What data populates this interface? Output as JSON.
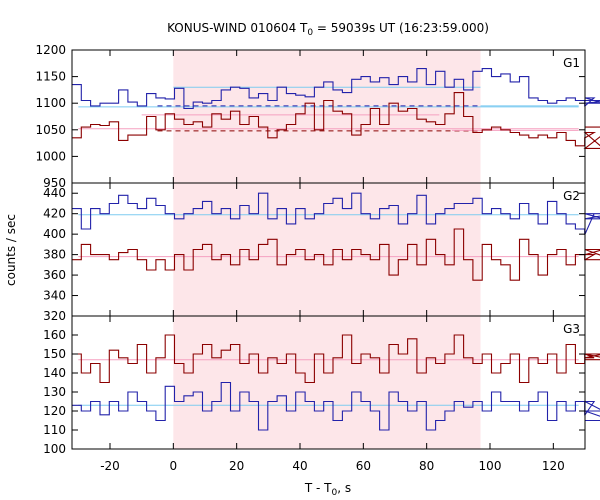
{
  "chart_data": {
    "type": "line",
    "title": "KONUS-WIND 010604 T",
    "title_sub": "0",
    "title_rest": " = 59039s UT (16:23:59.000)",
    "xlabel": "T - T",
    "xlabel_sub": "0",
    "xlabel_rest": ", s",
    "ylabel": "counts / sec",
    "xlim": [
      -32,
      130
    ],
    "x_ticks": [
      -20,
      0,
      20,
      40,
      60,
      80,
      100,
      120
    ],
    "x_tick_labels": [
      "-20",
      "0",
      "20",
      "40",
      "60",
      "80",
      "100",
      "120"
    ],
    "highlight_interval": [
      0,
      97
    ],
    "highlight_color": "#fde6e9",
    "colors": {
      "blue": "#2222aa",
      "red": "#8b0000",
      "cyan": "#7ecbf0",
      "pink": "#f5a0c0"
    },
    "bin_start": -32,
    "bin_width": 2.944,
    "panels": [
      {
        "label": "G1",
        "ylim": [
          950,
          1200
        ],
        "y_ticks": [
          950,
          1000,
          1050,
          1100,
          1150,
          1200
        ],
        "y_tick_labels": [
          "950",
          "1000",
          "1050",
          "1100",
          "1150",
          "1200"
        ],
        "series": [
          {
            "color": "blue",
            "values": [
              1135,
              1105,
              1095,
              1100,
              1100,
              1125,
              1102,
              1095,
              1118,
              1110,
              1108,
              1128,
              1090,
              1102,
              1100,
              1105,
              1125,
              1130,
              1128,
              1110,
              1118,
              1105,
              1130,
              1118,
              1115,
              1112,
              1130,
              1140,
              1125,
              1120,
              1145,
              1150,
              1140,
              1148,
              1135,
              1150,
              1140,
              1165,
              1135,
              1160,
              1130,
              1145,
              1125,
              1160,
              1165,
              1150,
              1155,
              1140,
              1150,
              1110,
              1105,
              1100,
              1105,
              1110,
              1105,
              1095,
              1110,
              1100,
              1105
            ]
          },
          {
            "color": "red",
            "values": [
              1035,
              1055,
              1060,
              1058,
              1065,
              1030,
              1040,
              1040,
              1075,
              1050,
              1080,
              1070,
              1060,
              1065,
              1055,
              1080,
              1070,
              1085,
              1060,
              1075,
              1055,
              1035,
              1050,
              1060,
              1080,
              1100,
              1050,
              1105,
              1085,
              1080,
              1040,
              1060,
              1090,
              1060,
              1100,
              1085,
              1090,
              1070,
              1065,
              1060,
              1080,
              1120,
              1075,
              1045,
              1050,
              1055,
              1050,
              1045,
              1040,
              1035,
              1040,
              1035,
              1045,
              1030,
              1020,
              1035,
              1045,
              1015,
              1055
            ]
          }
        ],
        "baselines": [
          {
            "color": "cyan",
            "style": "solid",
            "x": [
              -30,
              128
            ],
            "y": 1093
          },
          {
            "color": "pink",
            "style": "solid",
            "x": [
              -30,
              128
            ],
            "y": 1052
          },
          {
            "color": "cyan",
            "style": "solid",
            "x": [
              0,
              97
            ],
            "y": 1130
          },
          {
            "color": "pink",
            "style": "solid",
            "x": [
              -10,
              84
            ],
            "y": 1078
          },
          {
            "color": "blue",
            "style": "dashed",
            "x": [
              -5,
              97
            ],
            "y": 1095
          },
          {
            "color": "red",
            "style": "dashed",
            "x": [
              -5,
              97
            ],
            "y": 1048
          },
          {
            "color": "cyan",
            "style": "solid",
            "x": [
              97,
              128
            ],
            "y": 1095
          },
          {
            "color": "pink",
            "style": "solid",
            "x": [
              88,
              128
            ],
            "y": 1049
          }
        ]
      },
      {
        "label": "G2",
        "ylim": [
          320,
          450
        ],
        "y_ticks": [
          320,
          340,
          360,
          380,
          400,
          420,
          440
        ],
        "y_tick_labels": [
          "320",
          "340",
          "360",
          "380",
          "400",
          "420",
          "440"
        ],
        "series": [
          {
            "color": "blue",
            "values": [
              425,
              405,
              425,
              420,
              430,
              438,
              430,
              425,
              435,
              428,
              420,
              415,
              420,
              425,
              432,
              420,
              425,
              415,
              428,
              420,
              440,
              415,
              425,
              410,
              425,
              415,
              420,
              430,
              435,
              425,
              440,
              420,
              415,
              425,
              428,
              410,
              420,
              438,
              410,
              420,
              425,
              430,
              430,
              435,
              420,
              425,
              420,
              415,
              430,
              420,
              410,
              432,
              420,
              410,
              405,
              400,
              420,
              415,
              420
            ]
          },
          {
            "color": "red",
            "values": [
              375,
              390,
              380,
              380,
              375,
              382,
              385,
              375,
              365,
              375,
              365,
              380,
              365,
              385,
              390,
              375,
              380,
              370,
              385,
              375,
              390,
              395,
              370,
              380,
              385,
              375,
              380,
              370,
              385,
              375,
              385,
              380,
              375,
              390,
              360,
              375,
              390,
              370,
              395,
              380,
              370,
              405,
              375,
              355,
              390,
              375,
              370,
              355,
              395,
              380,
              360,
              380,
              385,
              370,
              380,
              375,
              380,
              385,
              375
            ]
          }
        ],
        "baselines": [
          {
            "color": "cyan",
            "style": "solid",
            "x": [
              -30,
              128
            ],
            "y": 419
          },
          {
            "color": "pink",
            "style": "solid",
            "x": [
              -30,
              128
            ],
            "y": 378
          }
        ]
      },
      {
        "label": "G3",
        "ylim": [
          100,
          170
        ],
        "y_ticks": [
          100,
          110,
          120,
          130,
          140,
          150,
          160
        ],
        "y_tick_labels": [
          "100",
          "110",
          "120",
          "130",
          "140",
          "150",
          "160"
        ],
        "series": [
          {
            "color": "blue",
            "values": [
              123,
              120,
              125,
              118,
              125,
              120,
              130,
              125,
              120,
              115,
              133,
              125,
              128,
              130,
              120,
              125,
              135,
              120,
              130,
              125,
              110,
              125,
              128,
              120,
              130,
              125,
              120,
              125,
              115,
              120,
              130,
              125,
              120,
              110,
              130,
              125,
              120,
              125,
              110,
              115,
              120,
              125,
              122,
              125,
              120,
              130,
              125,
              125,
              120,
              125,
              130,
              115,
              125,
              120,
              125,
              118,
              125,
              120,
              115
            ]
          },
          {
            "color": "red",
            "values": [
              150,
              140,
              145,
              135,
              152,
              148,
              145,
              155,
              140,
              148,
              160,
              145,
              140,
              150,
              155,
              148,
              152,
              155,
              145,
              150,
              140,
              148,
              145,
              150,
              140,
              135,
              150,
              140,
              148,
              160,
              145,
              150,
              148,
              140,
              155,
              150,
              158,
              140,
              148,
              145,
              150,
              160,
              148,
              145,
              150,
              140,
              145,
              150,
              135,
              148,
              145,
              150,
              140,
              155,
              145,
              150,
              148,
              150,
              147
            ]
          }
        ],
        "baselines": [
          {
            "color": "cyan",
            "style": "solid",
            "x": [
              -30,
              128
            ],
            "y": 123
          },
          {
            "color": "pink",
            "style": "solid",
            "x": [
              -30,
              128
            ],
            "y": 147
          }
        ]
      }
    ]
  }
}
